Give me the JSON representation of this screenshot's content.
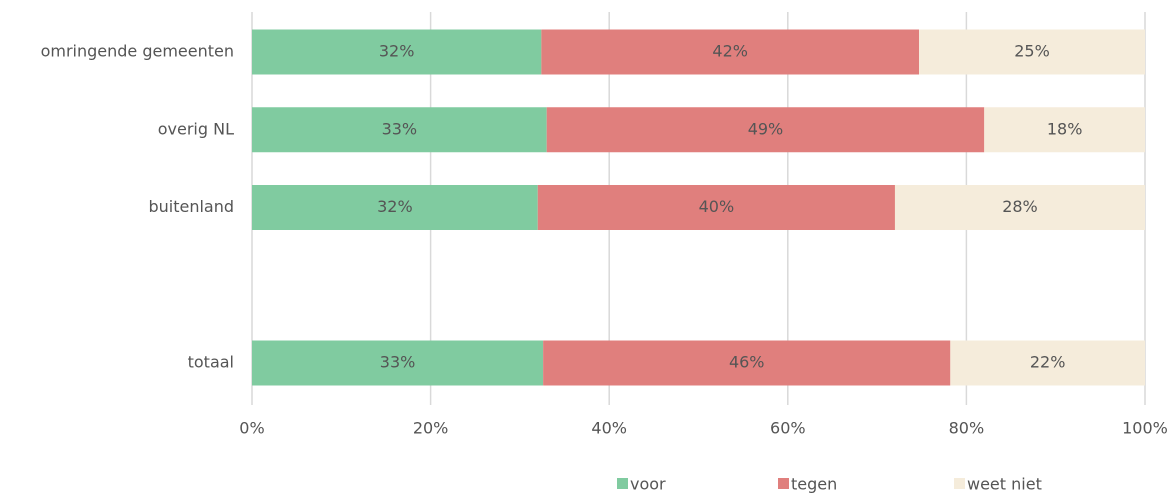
{
  "chart_data": {
    "type": "stacked_barh",
    "categories": [
      "omringende gemeenten",
      "overig NL",
      "buitenland",
      null,
      "totaal"
    ],
    "series": [
      {
        "name": "voor",
        "color": "#80cba0",
        "values": [
          32.4,
          33.0,
          32.0,
          null,
          32.6
        ],
        "value_labels": [
          "32%",
          "33%",
          "32%",
          null,
          "33%"
        ]
      },
      {
        "name": "tegen",
        "color": "#e07f7d",
        "values": [
          42.3,
          49.0,
          40.0,
          null,
          45.6
        ],
        "value_labels": [
          "42%",
          "49%",
          "40%",
          null,
          "46%"
        ]
      },
      {
        "name": "weet niet",
        "color": "#f5ecdb",
        "values": [
          25.3,
          18.0,
          28.0,
          null,
          21.8
        ],
        "value_labels": [
          "25%",
          "18%",
          "28%",
          null,
          "22%"
        ]
      }
    ],
    "xlim": [
      0,
      100
    ],
    "xticks": [
      {
        "value": 0,
        "label": "0%"
      },
      {
        "value": 20,
        "label": "20%"
      },
      {
        "value": 40,
        "label": "40%"
      },
      {
        "value": 60,
        "label": "60%"
      },
      {
        "value": 80,
        "label": "80%"
      },
      {
        "value": 100,
        "label": "100%"
      }
    ],
    "grid": true,
    "legend": "bottom"
  }
}
